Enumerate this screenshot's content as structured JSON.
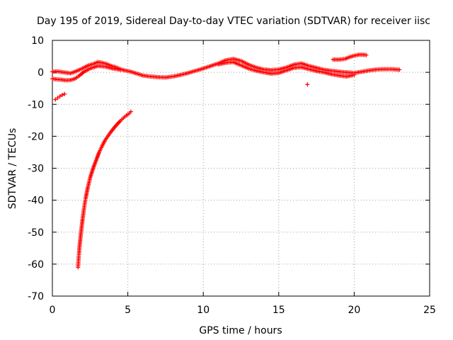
{
  "chart_data": {
    "type": "scatter",
    "title": "Day 195 of 2019, Sidereal Day-to-day VTEC variation (SDTVAR) for receiver iisc",
    "xlabel": "GPS time / hours",
    "ylabel": "SDTVAR / TECUs",
    "xlim": [
      0,
      25
    ],
    "ylim": [
      -70,
      10
    ],
    "x_ticks": [
      0,
      5,
      10,
      15,
      20,
      25
    ],
    "y_ticks": [
      10,
      0,
      -10,
      -20,
      -30,
      -40,
      -50,
      -60,
      -70
    ],
    "grid": true,
    "marker": "+",
    "series_color": "#ff0000",
    "series": [
      {
        "name": "arc-main-upper",
        "x": [
          0.0,
          0.3,
          0.6,
          0.9,
          1.2,
          1.5,
          1.8,
          2.1,
          2.4,
          2.7,
          3.0,
          3.3,
          3.6,
          3.9,
          4.2,
          4.5,
          4.8,
          5.2,
          5.6,
          6.0,
          6.5,
          7.0,
          7.5,
          8.0,
          8.5,
          9.0,
          9.5,
          10.0,
          10.5,
          11.0,
          11.5,
          12.0,
          12.5,
          13.0,
          13.5,
          14.0,
          14.5,
          15.0,
          15.5,
          16.0,
          16.5,
          17.0,
          17.5,
          18.0,
          18.5,
          19.0,
          19.5,
          20.0,
          20.5,
          21.0,
          21.5,
          22.0,
          22.5,
          23.0
        ],
        "y": [
          0.2,
          0.3,
          0.1,
          -0.1,
          -0.3,
          0.2,
          0.8,
          1.5,
          2.2,
          2.6,
          3.2,
          3.0,
          2.6,
          2.0,
          1.6,
          1.0,
          0.6,
          0.2,
          -0.4,
          -1.0,
          -1.3,
          -1.5,
          -1.6,
          -1.3,
          -0.8,
          -0.2,
          0.5,
          1.2,
          2.0,
          2.8,
          3.8,
          4.2,
          3.6,
          2.4,
          1.5,
          0.9,
          0.7,
          0.9,
          1.5,
          2.4,
          2.8,
          2.0,
          1.4,
          0.8,
          0.5,
          0.2,
          0.0,
          -0.2,
          0.2,
          0.6,
          0.9,
          1.0,
          1.0,
          0.8
        ]
      },
      {
        "name": "arc-main-lower",
        "x": [
          0.0,
          0.3,
          0.6,
          0.9,
          1.2,
          1.5,
          1.8,
          2.1,
          2.5,
          3.0,
          3.5,
          4.0,
          4.5,
          11.0,
          11.5,
          12.0,
          12.5,
          13.0,
          13.5,
          14.0,
          14.5,
          15.0,
          15.5,
          16.0,
          16.5,
          17.0,
          17.5,
          18.0,
          18.5,
          19.0,
          19.5,
          20.0
        ],
        "y": [
          -2.0,
          -2.2,
          -2.3,
          -2.5,
          -2.4,
          -2.0,
          -1.0,
          0.2,
          1.2,
          2.0,
          1.8,
          1.2,
          0.8,
          2.5,
          3.0,
          3.2,
          2.2,
          1.2,
          0.5,
          0.0,
          -0.4,
          -0.2,
          0.6,
          1.4,
          1.6,
          1.0,
          0.4,
          0.0,
          -0.6,
          -1.0,
          -1.3,
          -0.8
        ]
      },
      {
        "name": "arc-short-early",
        "x": [
          0.2,
          0.35,
          0.5,
          0.65,
          0.8
        ],
        "y": [
          -8.5,
          -8.0,
          -7.5,
          -7.1,
          -6.8
        ]
      },
      {
        "name": "arc-steep-rise",
        "x": [
          1.7,
          1.75,
          1.8,
          1.9,
          2.0,
          2.1,
          2.2,
          2.35,
          2.5,
          2.7,
          2.9,
          3.1,
          3.3,
          3.5,
          3.7,
          3.9,
          4.1,
          4.3,
          4.5,
          4.7,
          4.9,
          5.1,
          5.2
        ],
        "y": [
          -61.0,
          -57.5,
          -54.5,
          -50.0,
          -46.0,
          -42.5,
          -39.5,
          -36.0,
          -33.0,
          -30.0,
          -27.5,
          -25.0,
          -23.0,
          -21.2,
          -19.8,
          -18.5,
          -17.3,
          -16.2,
          -15.2,
          -14.3,
          -13.5,
          -12.8,
          -12.3
        ]
      },
      {
        "name": "arc-late-high",
        "x": [
          18.6,
          19.0,
          19.4,
          19.7,
          20.0,
          20.3,
          20.6,
          20.8
        ],
        "y": [
          4.0,
          4.0,
          4.2,
          4.8,
          5.2,
          5.5,
          5.5,
          5.4
        ]
      },
      {
        "name": "isolated-point",
        "x": [
          16.9
        ],
        "y": [
          -3.8
        ]
      }
    ]
  }
}
